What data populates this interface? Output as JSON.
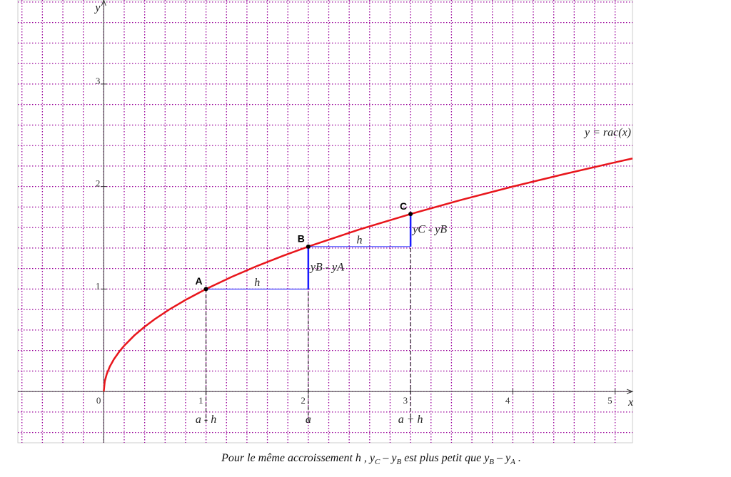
{
  "chart_data": {
    "type": "line",
    "x_label": "x",
    "y_label": "y",
    "xlim": [
      -0.84,
      5.17
    ],
    "ylim": [
      -0.5,
      3.82
    ],
    "xticks": [
      0,
      1,
      2,
      3,
      4,
      5
    ],
    "yticks": [
      1,
      2,
      3
    ],
    "grid": true,
    "minor_step": 0.2,
    "grid_color": "#990099",
    "series": [
      {
        "name": "y = rac(x)",
        "color": "#e8151b",
        "x": [
          0,
          0.01,
          0.03,
          0.06,
          0.1,
          0.15,
          0.2,
          0.3,
          0.4,
          0.5,
          0.65,
          0.8,
          1,
          1.25,
          1.5,
          1.75,
          2,
          2.5,
          3,
          3.5,
          4,
          4.5,
          5,
          5.17
        ],
        "values": [
          0,
          0.1,
          0.173,
          0.245,
          0.316,
          0.387,
          0.447,
          0.548,
          0.632,
          0.707,
          0.806,
          0.894,
          1,
          1.118,
          1.225,
          1.323,
          1.414,
          1.581,
          1.732,
          1.871,
          2,
          2.121,
          2.236,
          2.274
        ]
      }
    ],
    "points": [
      {
        "label": "A",
        "x": 1,
        "y": 1
      },
      {
        "label": "B",
        "x": 2,
        "y": 1.414
      },
      {
        "label": "C",
        "x": 3,
        "y": 1.732
      }
    ],
    "increment_color": "#1a1aff",
    "h_labels": [
      "h",
      "h"
    ],
    "diff_labels": [
      "yB - yA",
      "yC - yB"
    ],
    "x_markers": [
      {
        "value": 1,
        "label": "a - h"
      },
      {
        "value": 2,
        "label": "a"
      },
      {
        "value": 3,
        "label": "a + h"
      }
    ],
    "caption": [
      "Pour le même accroissement  h ,  y",
      "C",
      " – y",
      "B",
      "  est plus petit que  y",
      "B",
      " – y",
      "A",
      " ."
    ]
  }
}
